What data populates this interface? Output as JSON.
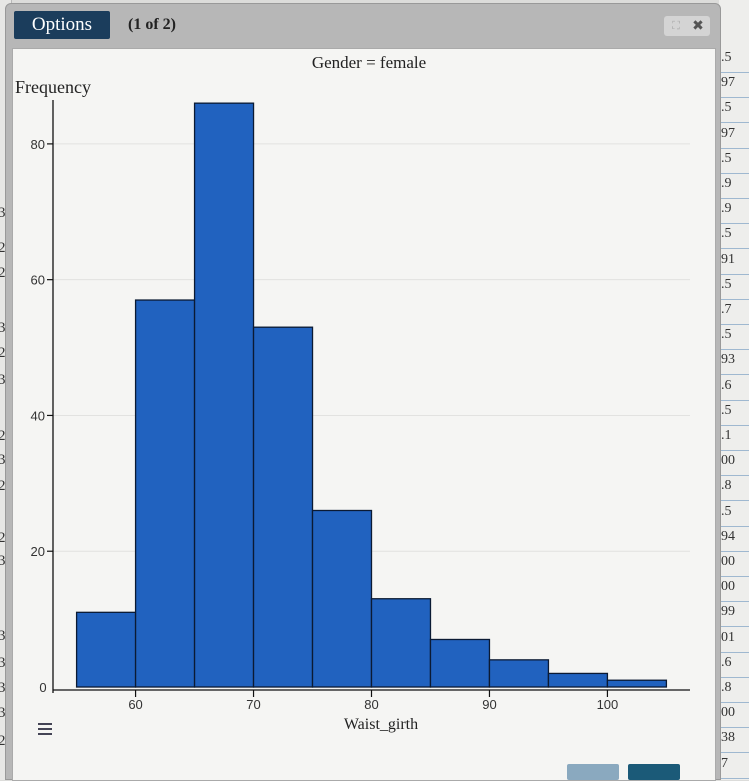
{
  "window": {
    "options_label": "Options",
    "page_counter": "(1 of 2)"
  },
  "controls": {
    "expand_icon": "expand-icon",
    "close_icon": "close-icon"
  },
  "colors": {
    "bar_fill": "#2162bf",
    "bar_stroke": "#0b1a33",
    "title_bar": "#1b3d5c"
  },
  "left_strip": [
    "3",
    "2",
    "2",
    "3",
    "2",
    "3",
    "2",
    "3",
    "2",
    "2",
    "3",
    "3",
    "3",
    "3",
    "3",
    "2"
  ],
  "right_strip": [
    ".5",
    "97",
    ".5",
    "97",
    ".5",
    ".9",
    ".9",
    ".5",
    "91",
    ".5",
    ".7",
    ".5",
    "93",
    ".6",
    ".5",
    ".1",
    "00",
    ".8",
    ".5",
    "94",
    "00",
    "00",
    "99",
    "01",
    ".6",
    ".8",
    "00",
    "38",
    "7"
  ],
  "chart_data": {
    "type": "bar",
    "title": "Gender = female",
    "xlabel": "Waist_girth",
    "ylabel": "Frequency",
    "bin_edges": [
      55,
      60,
      65,
      70,
      75,
      80,
      85,
      90,
      95,
      100,
      105
    ],
    "values": [
      11,
      57,
      86,
      53,
      26,
      13,
      7,
      4,
      2,
      1
    ],
    "xlim": [
      53,
      107
    ],
    "ylim": [
      0,
      90
    ],
    "x_ticks": [
      "60",
      "70",
      "80",
      "90",
      "100"
    ],
    "y_ticks": [
      "20",
      "40",
      "60",
      "80"
    ],
    "grid": true
  }
}
